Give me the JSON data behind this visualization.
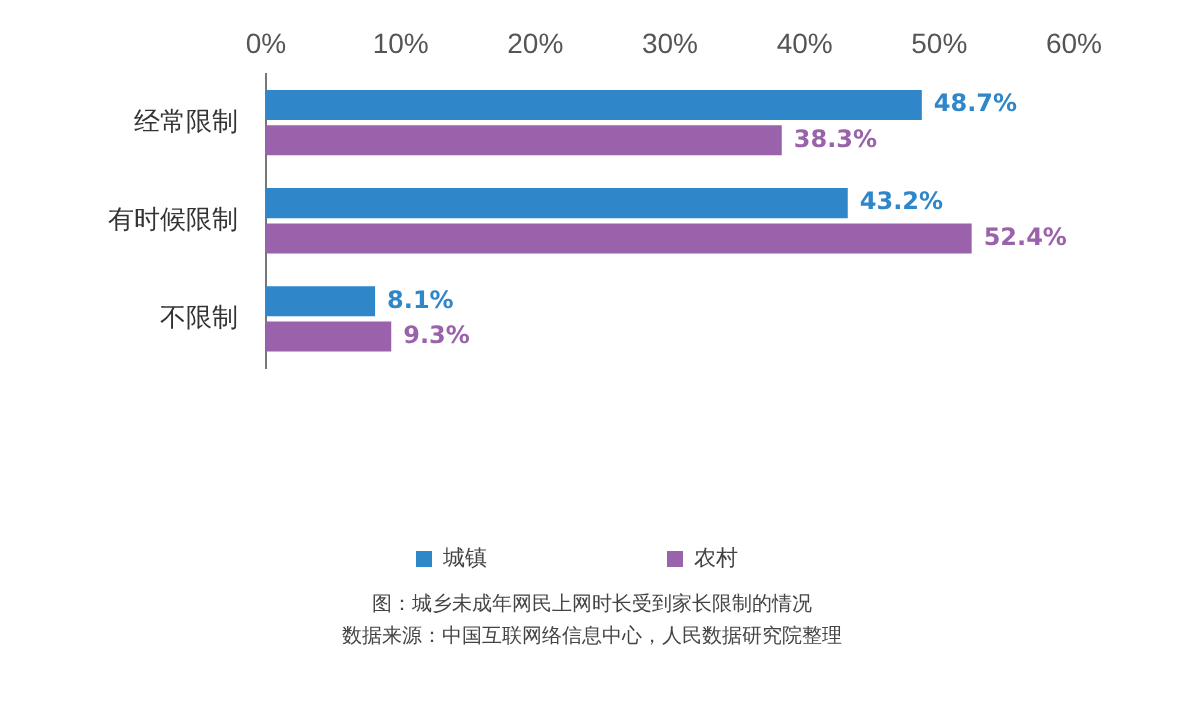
{
  "chart_data": {
    "type": "bar",
    "orientation": "horizontal",
    "categories": [
      "经常限制",
      "有时候限制",
      "不限制"
    ],
    "series": [
      {
        "name": "城镇",
        "color": "#2f86c8",
        "values": [
          48.7,
          43.2,
          8.1
        ],
        "value_labels": [
          "48.7%",
          "43.2%",
          "8.1%"
        ]
      },
      {
        "name": "农村",
        "color": "#9a62aa",
        "values": [
          38.3,
          52.4,
          9.3
        ],
        "value_labels": [
          "38.3%",
          "52.4%",
          "9.3%"
        ]
      }
    ],
    "xlim": [
      0,
      60
    ],
    "xticks": [
      {
        "value": 0,
        "label": "0%"
      },
      {
        "value": 10,
        "label": "10%"
      },
      {
        "value": 20,
        "label": "20%"
      },
      {
        "value": 30,
        "label": "30%"
      },
      {
        "value": 40,
        "label": "40%"
      },
      {
        "value": 50,
        "label": "50%"
      },
      {
        "value": 60,
        "label": "60%"
      }
    ],
    "grid": false,
    "legend": "bottom",
    "annotations": [
      "图：城乡未成年网民上网时长受到家长限制的情况",
      "数据来源：中国互联网络信息中心，人民数据研究院整理"
    ]
  }
}
